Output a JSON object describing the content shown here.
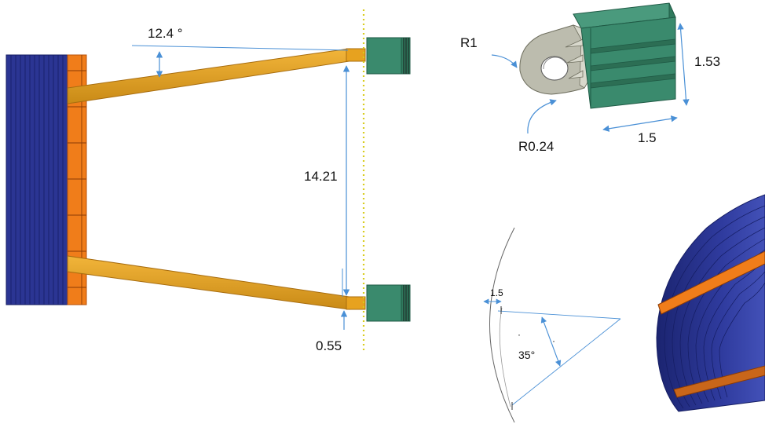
{
  "colors": {
    "navy": "#2b3593",
    "navy_dark": "#151d63",
    "orange": "#f07d1a",
    "orange_dark": "#b8520a",
    "gold": "#e7a21f",
    "gold_dark": "#a86d0f",
    "teal": "#3a8a6d",
    "teal_dark": "#1f5a45",
    "tan": "#bcbcae",
    "dimension": "#4a90d6",
    "centerline": "#d8cc1e"
  },
  "labels": {
    "angle_top": "12.4 °",
    "length": "14.21",
    "offset": "0.55",
    "radius_outer": "R1",
    "radius_hole": "R0.24",
    "height": "1.53",
    "width": "1.5",
    "arc_thickness": "1.5",
    "sector_angle": "35°"
  }
}
